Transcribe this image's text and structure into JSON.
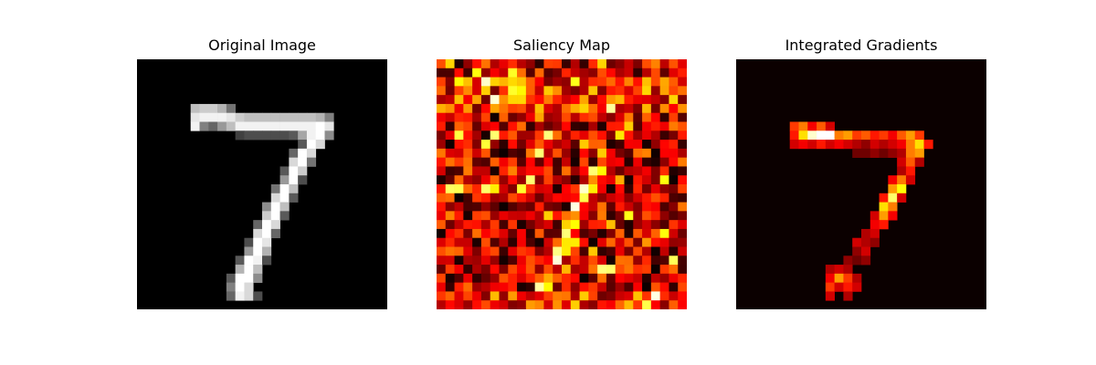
{
  "chart_data": [
    {
      "type": "heatmap",
      "title": "Original Image",
      "colormap": "gray",
      "grid": false,
      "axes_visible": false,
      "rows": 28,
      "cols": 28,
      "cells": [
        [
          5,
          6,
          0.75
        ],
        [
          5,
          7,
          0.8
        ],
        [
          5,
          8,
          0.8
        ],
        [
          5,
          9,
          0.7
        ],
        [
          5,
          10,
          0.45
        ],
        [
          6,
          6,
          0.9
        ],
        [
          6,
          7,
          0.95
        ],
        [
          6,
          8,
          0.95
        ],
        [
          6,
          9,
          0.95
        ],
        [
          6,
          10,
          0.9
        ],
        [
          6,
          11,
          0.8
        ],
        [
          6,
          12,
          0.75
        ],
        [
          6,
          13,
          0.75
        ],
        [
          6,
          14,
          0.75
        ],
        [
          6,
          15,
          0.75
        ],
        [
          6,
          16,
          0.75
        ],
        [
          6,
          17,
          0.75
        ],
        [
          6,
          18,
          0.75
        ],
        [
          6,
          19,
          0.75
        ],
        [
          6,
          20,
          0.7
        ],
        [
          6,
          21,
          0.5
        ],
        [
          7,
          6,
          0.95
        ],
        [
          7,
          7,
          0.5
        ],
        [
          7,
          8,
          0.4
        ],
        [
          7,
          9,
          0.6
        ],
        [
          7,
          10,
          0.75
        ],
        [
          7,
          11,
          0.95
        ],
        [
          7,
          12,
          0.95
        ],
        [
          7,
          13,
          0.95
        ],
        [
          7,
          14,
          0.95
        ],
        [
          7,
          15,
          0.95
        ],
        [
          7,
          16,
          0.95
        ],
        [
          7,
          17,
          0.95
        ],
        [
          7,
          18,
          0.95
        ],
        [
          7,
          19,
          0.95
        ],
        [
          7,
          20,
          1.0
        ],
        [
          7,
          21,
          0.9
        ],
        [
          8,
          11,
          0.25
        ],
        [
          8,
          12,
          0.3
        ],
        [
          8,
          13,
          0.3
        ],
        [
          8,
          14,
          0.3
        ],
        [
          8,
          15,
          0.3
        ],
        [
          8,
          16,
          0.3
        ],
        [
          8,
          17,
          0.35
        ],
        [
          8,
          18,
          0.65
        ],
        [
          8,
          19,
          0.95
        ],
        [
          8,
          20,
          1.0
        ],
        [
          8,
          21,
          0.55
        ],
        [
          9,
          18,
          0.35
        ],
        [
          9,
          19,
          1.0
        ],
        [
          9,
          20,
          0.85
        ],
        [
          10,
          17,
          0.4
        ],
        [
          10,
          18,
          1.0
        ],
        [
          10,
          19,
          0.85
        ],
        [
          11,
          17,
          0.85
        ],
        [
          11,
          18,
          1.0
        ],
        [
          11,
          19,
          0.45
        ],
        [
          12,
          16,
          0.35
        ],
        [
          12,
          17,
          1.0
        ],
        [
          12,
          18,
          0.8
        ],
        [
          13,
          16,
          0.6
        ],
        [
          13,
          17,
          1.0
        ],
        [
          13,
          18,
          0.3
        ],
        [
          14,
          15,
          0.45
        ],
        [
          14,
          16,
          1.0
        ],
        [
          14,
          17,
          0.75
        ],
        [
          15,
          15,
          0.85
        ],
        [
          15,
          16,
          1.0
        ],
        [
          15,
          17,
          0.35
        ],
        [
          16,
          14,
          0.55
        ],
        [
          16,
          15,
          1.0
        ],
        [
          16,
          16,
          0.75
        ],
        [
          17,
          14,
          0.8
        ],
        [
          17,
          15,
          1.0
        ],
        [
          17,
          16,
          0.35
        ],
        [
          18,
          13,
          0.4
        ],
        [
          18,
          14,
          1.0
        ],
        [
          18,
          15,
          0.85
        ],
        [
          19,
          13,
          0.85
        ],
        [
          19,
          14,
          1.0
        ],
        [
          19,
          15,
          0.4
        ],
        [
          20,
          12,
          0.3
        ],
        [
          20,
          13,
          1.0
        ],
        [
          20,
          14,
          0.9
        ],
        [
          21,
          12,
          0.6
        ],
        [
          21,
          13,
          1.0
        ],
        [
          21,
          14,
          0.7
        ],
        [
          22,
          11,
          0.35
        ],
        [
          22,
          12,
          1.0
        ],
        [
          22,
          13,
          0.95
        ],
        [
          22,
          14,
          0.3
        ],
        [
          23,
          11,
          0.7
        ],
        [
          23,
          12,
          1.0
        ],
        [
          23,
          13,
          0.75
        ],
        [
          24,
          10,
          0.35
        ],
        [
          24,
          11,
          1.0
        ],
        [
          24,
          12,
          1.0
        ],
        [
          24,
          13,
          0.55
        ],
        [
          25,
          10,
          0.5
        ],
        [
          25,
          11,
          1.0
        ],
        [
          25,
          12,
          0.85
        ],
        [
          26,
          10,
          0.4
        ],
        [
          26,
          11,
          0.95
        ],
        [
          26,
          12,
          0.85
        ],
        [
          26,
          13,
          0.3
        ]
      ]
    },
    {
      "type": "heatmap",
      "title": "Saliency Map",
      "colormap": "hot",
      "grid": false,
      "axes_visible": false,
      "rows": 28,
      "cols": 28,
      "seed": 7
    },
    {
      "type": "heatmap",
      "title": "Integrated Gradients",
      "colormap": "hot",
      "grid": false,
      "axes_visible": false,
      "rows": 28,
      "cols": 28,
      "cells": [
        [
          7,
          6,
          0.45
        ],
        [
          7,
          7,
          0.55
        ],
        [
          7,
          8,
          0.35
        ],
        [
          7,
          9,
          0.5
        ],
        [
          7,
          10,
          0.3
        ],
        [
          8,
          6,
          0.4
        ],
        [
          8,
          7,
          0.7
        ],
        [
          8,
          8,
          0.95
        ],
        [
          8,
          9,
          1.0
        ],
        [
          8,
          10,
          1.0
        ],
        [
          8,
          11,
          0.55
        ],
        [
          8,
          12,
          0.6
        ],
        [
          8,
          13,
          0.45
        ],
        [
          8,
          14,
          0.5
        ],
        [
          8,
          15,
          0.4
        ],
        [
          8,
          16,
          0.45
        ],
        [
          8,
          17,
          0.35
        ],
        [
          8,
          18,
          0.5
        ],
        [
          8,
          19,
          0.6
        ],
        [
          8,
          20,
          0.45
        ],
        [
          9,
          6,
          0.3
        ],
        [
          9,
          7,
          0.35
        ],
        [
          9,
          8,
          0.3
        ],
        [
          9,
          9,
          0.4
        ],
        [
          9,
          10,
          0.3
        ],
        [
          9,
          11,
          0.35
        ],
        [
          9,
          12,
          0.3
        ],
        [
          9,
          13,
          0.25
        ],
        [
          9,
          14,
          0.2
        ],
        [
          9,
          15,
          0.3
        ],
        [
          9,
          16,
          0.25
        ],
        [
          9,
          17,
          0.3
        ],
        [
          9,
          18,
          0.35
        ],
        [
          9,
          19,
          0.55
        ],
        [
          9,
          20,
          0.7
        ],
        [
          9,
          21,
          0.4
        ],
        [
          10,
          13,
          0.15
        ],
        [
          10,
          14,
          0.15
        ],
        [
          10,
          15,
          0.2
        ],
        [
          10,
          16,
          0.15
        ],
        [
          10,
          17,
          0.2
        ],
        [
          10,
          18,
          0.25
        ],
        [
          10,
          19,
          0.55
        ],
        [
          10,
          20,
          0.6
        ],
        [
          11,
          18,
          0.3
        ],
        [
          11,
          19,
          0.5
        ],
        [
          11,
          20,
          0.25
        ],
        [
          12,
          18,
          0.25
        ],
        [
          12,
          19,
          0.4
        ],
        [
          13,
          17,
          0.35
        ],
        [
          13,
          18,
          0.55
        ],
        [
          13,
          19,
          0.3
        ],
        [
          14,
          17,
          0.6
        ],
        [
          14,
          18,
          0.75
        ],
        [
          15,
          16,
          0.4
        ],
        [
          15,
          17,
          0.85
        ],
        [
          15,
          18,
          0.3
        ],
        [
          16,
          16,
          0.7
        ],
        [
          16,
          17,
          0.55
        ],
        [
          17,
          15,
          0.3
        ],
        [
          17,
          16,
          0.6
        ],
        [
          17,
          17,
          0.35
        ],
        [
          18,
          15,
          0.35
        ],
        [
          18,
          16,
          0.4
        ],
        [
          19,
          14,
          0.25
        ],
        [
          19,
          15,
          0.3
        ],
        [
          20,
          13,
          0.3
        ],
        [
          20,
          14,
          0.25
        ],
        [
          20,
          15,
          0.2
        ],
        [
          21,
          13,
          0.2
        ],
        [
          21,
          14,
          0.3
        ],
        [
          22,
          12,
          0.2
        ],
        [
          22,
          13,
          0.15
        ],
        [
          22,
          14,
          0.2
        ],
        [
          23,
          10,
          0.25
        ],
        [
          23,
          11,
          0.3
        ],
        [
          23,
          12,
          0.25
        ],
        [
          24,
          10,
          0.35
        ],
        [
          24,
          11,
          0.6
        ],
        [
          24,
          12,
          0.45
        ],
        [
          24,
          13,
          0.25
        ],
        [
          25,
          10,
          0.45
        ],
        [
          25,
          11,
          0.3
        ],
        [
          25,
          12,
          0.4
        ],
        [
          25,
          13,
          0.3
        ],
        [
          26,
          10,
          0.3
        ],
        [
          26,
          12,
          0.25
        ]
      ]
    }
  ]
}
